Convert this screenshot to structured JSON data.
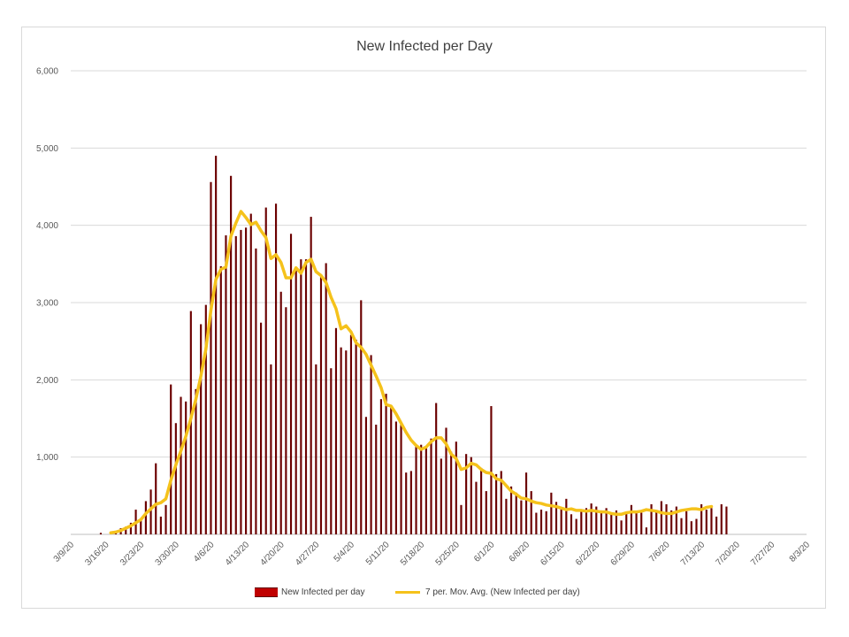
{
  "chart_data": {
    "type": "bar",
    "title": "New Infected per Day",
    "ylim": [
      0,
      6000
    ],
    "y_ticks": [
      "",
      "1,000",
      "2,000",
      "3,000",
      "4,000",
      "5,000",
      "6,000"
    ],
    "x_ticks": [
      "3/9/20",
      "3/16/20",
      "3/23/20",
      "3/30/20",
      "4/6/20",
      "4/13/20",
      "4/20/20",
      "4/27/20",
      "5/4/20",
      "5/11/20",
      "5/18/20",
      "5/25/20",
      "6/1/20",
      "6/8/20",
      "6/15/20",
      "6/22/20",
      "6/29/20",
      "7/6/20",
      "7/13/20",
      "7/20/20",
      "7/27/20",
      "8/3/20"
    ],
    "x_start": "3/9/20",
    "x_end": "8/3/20",
    "series": [
      {
        "name": "New Infected per day",
        "color": "#6b0000",
        "values": [
          0,
          0,
          0,
          0,
          0,
          0,
          20,
          0,
          0,
          30,
          80,
          100,
          150,
          320,
          180,
          430,
          580,
          920,
          230,
          380,
          1940,
          1440,
          1780,
          1720,
          2890,
          1880,
          2720,
          2970,
          4560,
          4900,
          3470,
          3870,
          4640,
          3860,
          3940,
          3970,
          4150,
          3700,
          2740,
          4230,
          2200,
          4280,
          3140,
          2940,
          3890,
          3460,
          3560,
          3560,
          4110,
          2200,
          3330,
          3510,
          2150,
          2670,
          2420,
          2380,
          2580,
          2520,
          3030,
          1520,
          2320,
          1420,
          1750,
          1820,
          1640,
          1460,
          1420,
          800,
          820,
          1150,
          1160,
          1120,
          1240,
          1700,
          980,
          1380,
          1070,
          1200,
          380,
          1040,
          1000,
          680,
          860,
          560,
          1660,
          780,
          820,
          460,
          620,
          540,
          440,
          800,
          560,
          280,
          320,
          300,
          540,
          420,
          350,
          460,
          260,
          200,
          300,
          340,
          400,
          360,
          310,
          340,
          270,
          310,
          180,
          290,
          380,
          300,
          280,
          90,
          390,
          300,
          430,
          390,
          310,
          360,
          210,
          300,
          170,
          200,
          390,
          320,
          340,
          230,
          390,
          360
        ]
      },
      {
        "name": "7 per. Mov. Avg. (New Infected per day)",
        "color": "#f5c21b",
        "values": [
          null,
          null,
          null,
          null,
          null,
          null,
          null,
          null,
          20,
          30,
          50,
          80,
          110,
          150,
          190,
          270,
          330,
          390,
          410,
          460,
          700,
          900,
          1080,
          1270,
          1500,
          1750,
          2050,
          2400,
          2900,
          3300,
          3430,
          3460,
          3860,
          4030,
          4180,
          4100,
          4010,
          4040,
          3930,
          3840,
          3570,
          3620,
          3520,
          3320,
          3320,
          3450,
          3380,
          3520,
          3560,
          3400,
          3350,
          3260,
          3070,
          2920,
          2660,
          2700,
          2620,
          2480,
          2420,
          2330,
          2190,
          2050,
          1900,
          1680,
          1660,
          1560,
          1440,
          1320,
          1220,
          1150,
          1100,
          1130,
          1200,
          1250,
          1250,
          1170,
          1040,
          980,
          840,
          860,
          920,
          900,
          840,
          800,
          790,
          720,
          700,
          630,
          560,
          520,
          470,
          460,
          430,
          410,
          400,
          380,
          370,
          360,
          340,
          320,
          330,
          310,
          310,
          300,
          310,
          300,
          290,
          290,
          270,
          260,
          260,
          280,
          290,
          290,
          300,
          320,
          310,
          300,
          280,
          270,
          270,
          290,
          310,
          320,
          330,
          330,
          320,
          350,
          360
        ]
      }
    ]
  }
}
